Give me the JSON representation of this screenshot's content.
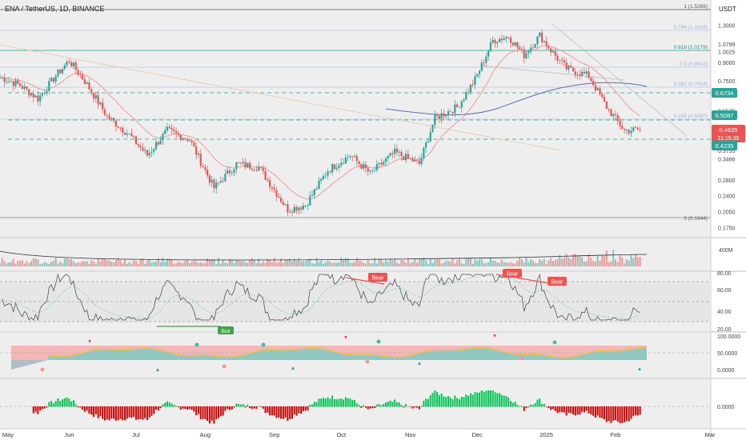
{
  "header": {
    "symbol": "ENA / TetherUS, 1D, BINANCE",
    "currency": "USDT"
  },
  "price_axis": {
    "labels": [
      "1.3000",
      "1.0799",
      "1.0025",
      "0.9000",
      "0.7500",
      "0.5575",
      "0.4668",
      "0.3931",
      "0.3755",
      "0.3466",
      "0.2800",
      "0.2400",
      "0.2050",
      "0.1750"
    ],
    "badges": {
      "b1": "0.6734",
      "b2": "0.5087",
      "last_price": "0.4635",
      "countdown": "11:15:35",
      "b4": "0.4235"
    }
  },
  "fib_labels": {
    "top": "1 (1.5269)",
    "f786": "0.786 (1.2418)",
    "f618": "0.618 (1.0179)",
    "f5": "0.5 (0.8601)",
    "f382": "0.382 (0.7014)",
    "f236": "0.236 (0.5087)",
    "bottom": "0 (0.1944)"
  },
  "time_axis": [
    "May",
    "Jun",
    "Jul",
    "Aug",
    "Sep",
    "Oct",
    "Nov",
    "Dec",
    "2025",
    "Feb",
    "Mar"
  ],
  "volume_axis": {
    "label": "400M"
  },
  "rsi": {
    "axis": [
      "80.00",
      "60.00",
      "40.00",
      "20.00"
    ],
    "labels": {
      "bear1": "Bear",
      "bear2": "Bear",
      "bear3": "Bear",
      "bull1": "Bull"
    }
  },
  "osc": {
    "axis": [
      "100.0000",
      "50.0000",
      "0.0000"
    ]
  },
  "bottom_osc": {
    "axis": [
      "0.0000"
    ]
  },
  "colors": {
    "up": "#26a69a",
    "down": "#ef5350",
    "ma_blue": "#5c6bc0",
    "fib": "#4db6ac",
    "bear": "#ef5350",
    "bull": "#43a047"
  },
  "chart_data": {
    "type": "candlestick",
    "symbol": "ENA / TetherUS",
    "interval": "1D",
    "exchange": "BINANCE",
    "scale": "log",
    "x_range": [
      "2024-05-01",
      "2025-03-01"
    ],
    "y_range": [
      0.17,
      1.53
    ],
    "close_path": [
      {
        "x": "2024-05-01",
        "y": 0.78
      },
      {
        "x": "2024-05-10",
        "y": 0.72
      },
      {
        "x": "2024-05-18",
        "y": 0.63
      },
      {
        "x": "2024-05-26",
        "y": 0.79
      },
      {
        "x": "2024-06-01",
        "y": 0.92
      },
      {
        "x": "2024-06-08",
        "y": 0.75
      },
      {
        "x": "2024-06-18",
        "y": 0.53
      },
      {
        "x": "2024-06-28",
        "y": 0.44
      },
      {
        "x": "2024-07-06",
        "y": 0.36
      },
      {
        "x": "2024-07-15",
        "y": 0.46
      },
      {
        "x": "2024-07-25",
        "y": 0.42
      },
      {
        "x": "2024-08-05",
        "y": 0.26
      },
      {
        "x": "2024-08-15",
        "y": 0.33
      },
      {
        "x": "2024-08-25",
        "y": 0.32
      },
      {
        "x": "2024-09-07",
        "y": 0.21
      },
      {
        "x": "2024-09-15",
        "y": 0.22
      },
      {
        "x": "2024-09-25",
        "y": 0.31
      },
      {
        "x": "2024-10-05",
        "y": 0.36
      },
      {
        "x": "2024-10-14",
        "y": 0.3
      },
      {
        "x": "2024-10-25",
        "y": 0.37
      },
      {
        "x": "2024-11-05",
        "y": 0.33
      },
      {
        "x": "2024-11-12",
        "y": 0.52
      },
      {
        "x": "2024-11-22",
        "y": 0.58
      },
      {
        "x": "2024-11-30",
        "y": 0.76
      },
      {
        "x": "2024-12-08",
        "y": 1.12
      },
      {
        "x": "2024-12-15",
        "y": 1.17
      },
      {
        "x": "2024-12-22",
        "y": 0.97
      },
      {
        "x": "2024-12-29",
        "y": 1.18
      },
      {
        "x": "2025-01-04",
        "y": 0.99
      },
      {
        "x": "2025-01-10",
        "y": 0.85
      },
      {
        "x": "2025-01-20",
        "y": 0.79
      },
      {
        "x": "2025-01-28",
        "y": 0.58
      },
      {
        "x": "2025-02-05",
        "y": 0.46
      },
      {
        "x": "2025-02-12",
        "y": 0.4635
      }
    ],
    "last_price": 0.4635,
    "horizontal_levels": [
      0.6734,
      0.5087,
      0.4235
    ],
    "fibonacci": [
      {
        "level": 1,
        "price": 1.5269
      },
      {
        "level": 0.786,
        "price": 1.2418
      },
      {
        "level": 0.618,
        "price": 1.0179
      },
      {
        "level": 0.5,
        "price": 0.8601
      },
      {
        "level": 0.382,
        "price": 0.7014
      },
      {
        "level": 0.236,
        "price": 0.5087
      },
      {
        "level": 0,
        "price": 0.1944
      }
    ],
    "panes": [
      "price",
      "volume",
      "rsi",
      "oscillator",
      "histogram"
    ]
  }
}
